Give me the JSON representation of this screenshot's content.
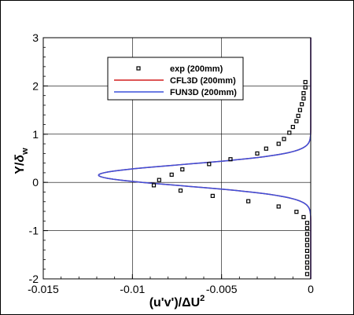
{
  "chart_data": {
    "type": "line",
    "xlabel": "(u'v')/ΔU²",
    "ylabel": "Y/δw",
    "xlim": [
      -0.015,
      0
    ],
    "ylim": [
      -2,
      3
    ],
    "xticks": [
      "-0.015",
      "-0.01",
      "-0.005",
      "0"
    ],
    "yticks": [
      "-2",
      "-1",
      "0",
      "1",
      "2",
      "3"
    ],
    "xtick_values": [
      -0.015,
      -0.01,
      -0.005,
      0
    ],
    "ytick_values": [
      -2,
      -1,
      0,
      1,
      2,
      3
    ],
    "grid": true,
    "legend_position": "top-center",
    "series": [
      {
        "name": "exp (200mm)",
        "kind": "scatter",
        "marker": "open-square",
        "color": "#000000",
        "points": [
          [
            -0.0003,
            2.08
          ],
          [
            -0.0003,
            1.97
          ],
          [
            -0.0004,
            1.85
          ],
          [
            -0.0004,
            1.74
          ],
          [
            -0.0005,
            1.62
          ],
          [
            -0.0006,
            1.5
          ],
          [
            -0.0007,
            1.38
          ],
          [
            -0.0008,
            1.27
          ],
          [
            -0.001,
            1.15
          ],
          [
            -0.0012,
            1.03
          ],
          [
            -0.0015,
            0.9
          ],
          [
            -0.0018,
            0.8
          ],
          [
            -0.0025,
            0.7
          ],
          [
            -0.003,
            0.6
          ],
          [
            -0.0045,
            0.48
          ],
          [
            -0.0057,
            0.38
          ],
          [
            -0.0072,
            0.27
          ],
          [
            -0.0078,
            0.16
          ],
          [
            -0.0085,
            0.05
          ],
          [
            -0.0088,
            -0.06
          ],
          [
            -0.0073,
            -0.17
          ],
          [
            -0.0055,
            -0.28
          ],
          [
            -0.0035,
            -0.39
          ],
          [
            -0.0018,
            -0.5
          ],
          [
            -0.0008,
            -0.61
          ],
          [
            -0.0004,
            -0.72
          ],
          [
            -0.0002,
            -0.84
          ],
          [
            -0.0002,
            -0.95
          ],
          [
            -0.0002,
            -1.07
          ],
          [
            -0.0002,
            -1.19
          ],
          [
            -0.0002,
            -1.3
          ],
          [
            -0.0002,
            -1.42
          ],
          [
            -0.0002,
            -1.54
          ],
          [
            -0.0002,
            -1.66
          ],
          [
            -0.0002,
            -1.77
          ],
          [
            -0.0002,
            -1.9
          ]
        ]
      },
      {
        "name": "CFL3D (200mm)",
        "kind": "line",
        "color": "#d21e1e",
        "curve": {
          "amplitude": -0.0119,
          "center": 0.15,
          "width": 0.22,
          "y_start": -2,
          "y_end": 3
        }
      },
      {
        "name": "FUN3D (200mm)",
        "kind": "line",
        "color": "#3c50dc",
        "curve": {
          "amplitude": -0.0119,
          "center": 0.15,
          "width": 0.22,
          "y_start": -2,
          "y_end": 3
        }
      }
    ]
  },
  "colors": {
    "exp": "#000000",
    "cfl3d": "#d21e1e",
    "fun3d": "#3c50dc"
  },
  "legend": {
    "exp_label": "exp (200mm)",
    "cfl3d_label": "CFL3D (200mm)",
    "fun3d_label": "FUN3D (200mm)"
  }
}
